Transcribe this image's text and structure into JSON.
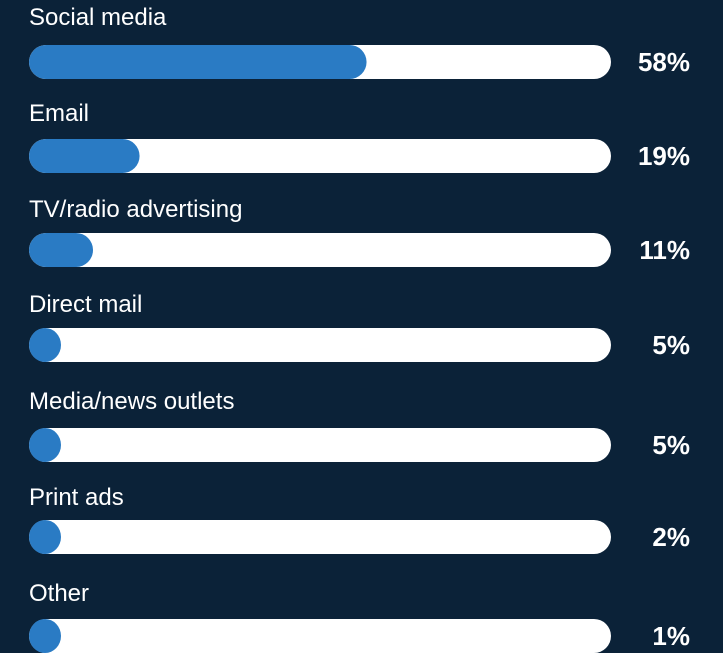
{
  "colors": {
    "background": "#0b2238",
    "track": "#ffffff",
    "fill": "#2a7bc4",
    "text": "#ffffff"
  },
  "chart_data": {
    "type": "bar",
    "orientation": "horizontal",
    "categories": [
      "Social media",
      "Email",
      "TV/radio advertising",
      "Direct mail",
      "Media/news outlets",
      "Print ads",
      "Other"
    ],
    "values": [
      58,
      19,
      11,
      5,
      5,
      2,
      1
    ],
    "value_labels": [
      "58%",
      "19%",
      "11%",
      "5%",
      "5%",
      "2%",
      "1%"
    ],
    "unit": "%",
    "xlim": [
      0,
      100
    ],
    "grid": false,
    "legend": "none"
  }
}
